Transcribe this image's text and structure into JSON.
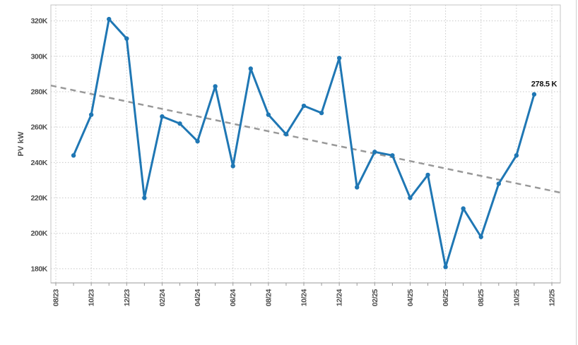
{
  "card": {
    "border_color": "#cfcfcf"
  },
  "chart_data": {
    "type": "line",
    "title": "",
    "xlabel": "",
    "ylabel": "PV kW",
    "grid": true,
    "legend_position": "none",
    "x_start_month": "08/23",
    "x_end_month": "12/25",
    "x_tick_labels": [
      "08/23",
      "10/23",
      "12/23",
      "02/24",
      "04/24",
      "06/24",
      "08/24",
      "10/24",
      "12/24",
      "02/25",
      "04/25",
      "06/25",
      "08/25",
      "10/25",
      "12/25"
    ],
    "y_ticks": [
      180,
      200,
      220,
      240,
      260,
      280,
      300,
      320
    ],
    "y_tick_labels": [
      "180K",
      "200K",
      "220K",
      "240K",
      "260K",
      "280K",
      "300K",
      "320K"
    ],
    "ylim": [
      172,
      329
    ],
    "series": [
      {
        "name": "PV kW",
        "x": [
          "09/23",
          "10/23",
          "11/23",
          "12/23",
          "01/24",
          "02/24",
          "03/24",
          "04/24",
          "05/24",
          "06/24",
          "07/24",
          "08/24",
          "09/24",
          "10/24",
          "11/24",
          "12/24",
          "01/25",
          "02/25",
          "03/25",
          "04/25",
          "05/25",
          "06/25",
          "07/25",
          "08/25",
          "09/25",
          "10/25",
          "11/25"
        ],
        "values": [
          244,
          267,
          321,
          310,
          220,
          266,
          262,
          252,
          283,
          238,
          293,
          267,
          256,
          272,
          268,
          299,
          226,
          246,
          244,
          220,
          233,
          181,
          214,
          198,
          228,
          244,
          278.5
        ]
      }
    ],
    "trend_line": {
      "name": "linear-trend",
      "style": "dashed",
      "start_value": 283.5,
      "end_value": 223
    },
    "annotation": {
      "text": "278.5 K",
      "at_x": "11/25",
      "at_value": 278.5
    },
    "colors": {
      "line": "#1f77b4",
      "marker": "#1f77b4",
      "trend": "#999999",
      "grid": "#c8c8c8",
      "frame": "#c4c4c4",
      "axis_bottom": "#9a9a9a",
      "tick": "#9a9a9a",
      "tick_text": "#4d4d4d",
      "annotation_text": "#111111"
    }
  }
}
